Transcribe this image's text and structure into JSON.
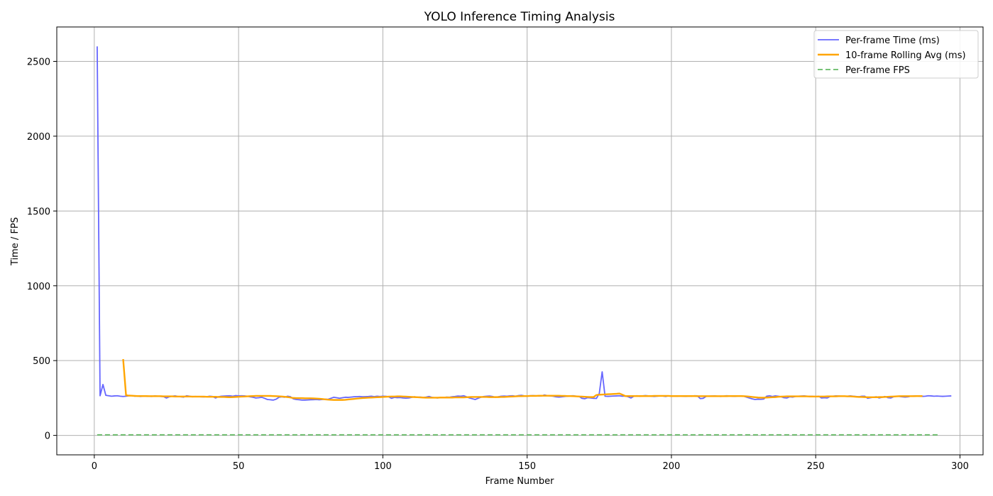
{
  "chart_data": {
    "type": "line",
    "title": "YOLO Inference Timing Analysis",
    "xlabel": "Frame Number",
    "ylabel": "Time / FPS",
    "xlim": [
      -13,
      308
    ],
    "ylim": [
      -130,
      2730
    ],
    "xticks": [
      0,
      50,
      100,
      150,
      200,
      250,
      300
    ],
    "yticks": [
      0,
      500,
      1000,
      1500,
      2000,
      2500
    ],
    "grid": true,
    "legend_position": "top-right",
    "series": [
      {
        "name": "Per-frame Time (ms)",
        "color": "#6666ff",
        "style": "solid",
        "x_start": 1,
        "values": [
          2600,
          265,
          340,
          268,
          265,
          262,
          264,
          265,
          262,
          260,
          262,
          265,
          266,
          262,
          264,
          260,
          263,
          262,
          261,
          260,
          264,
          262,
          260,
          259,
          250,
          258,
          262,
          264,
          260,
          258,
          256,
          265,
          262,
          258,
          260,
          259,
          258,
          257,
          259,
          262,
          260,
          250,
          258,
          262,
          263,
          264,
          265,
          262,
          266,
          264,
          265,
          264,
          262,
          258,
          255,
          250,
          252,
          255,
          248,
          240,
          238,
          236,
          242,
          255,
          258,
          255,
          262,
          258,
          244,
          240,
          238,
          236,
          236,
          237,
          238,
          239,
          240,
          238,
          240,
          242,
          241,
          248,
          255,
          252,
          248,
          252,
          255,
          254,
          256,
          258,
          259,
          260,
          258,
          259,
          260,
          262,
          259,
          262,
          260,
          262,
          261,
          258,
          248,
          254,
          252,
          253,
          250,
          249,
          250,
          254,
          258,
          255,
          256,
          254,
          256,
          260,
          254,
          252,
          250,
          254,
          252,
          256,
          255,
          258,
          260,
          263,
          262,
          265,
          258,
          250,
          245,
          240,
          248,
          255,
          260,
          262,
          263,
          260,
          255,
          258,
          262,
          263,
          262,
          264,
          265,
          262,
          266,
          268,
          264,
          262,
          265,
          266,
          265,
          263,
          264,
          270,
          266,
          264,
          262,
          258,
          256,
          258,
          260,
          262,
          264,
          265,
          262,
          260,
          248,
          245,
          252,
          250,
          248,
          247,
          280,
          425,
          262,
          261,
          262,
          263,
          264,
          265,
          262,
          263,
          258,
          250,
          262,
          265,
          262,
          264,
          266,
          264,
          262,
          260,
          262,
          264,
          263,
          260,
          264,
          262,
          263,
          262,
          264,
          262,
          261,
          263,
          262,
          265,
          264,
          246,
          248,
          260,
          262,
          263,
          264,
          262,
          260,
          262,
          265,
          264,
          262,
          261,
          263,
          264,
          262,
          256,
          250,
          244,
          240,
          242,
          241,
          243,
          262,
          265,
          260,
          264,
          262,
          258,
          252,
          250,
          258,
          256,
          260,
          262,
          263,
          264,
          262,
          262,
          261,
          258,
          262,
          250,
          252,
          250,
          260,
          262,
          264,
          263,
          262,
          261,
          262,
          264,
          262,
          260,
          258,
          262,
          262,
          248,
          252,
          255,
          258,
          250,
          255,
          260,
          252,
          250,
          258,
          262,
          260,
          258,
          256,
          258,
          262,
          263,
          264,
          262,
          261,
          262,
          265,
          264,
          262,
          263,
          262,
          261,
          262,
          263,
          264
        ]
      },
      {
        "name": "10-frame Rolling Avg (ms)",
        "color": "#ffa500",
        "style": "solid",
        "x_start": 10,
        "values": [
          510,
          268,
          266,
          265,
          264,
          263,
          263,
          263,
          263,
          262,
          262,
          262,
          262,
          262,
          261,
          261,
          261,
          261,
          260,
          260,
          260,
          260,
          260,
          260,
          259,
          259,
          259,
          259,
          259,
          258,
          258,
          258,
          258,
          257,
          257,
          257,
          256,
          255,
          256,
          257,
          258,
          259,
          260,
          261,
          262,
          263,
          264,
          264,
          264,
          264,
          264,
          264,
          263,
          262,
          261,
          260,
          258,
          256,
          253,
          250,
          249,
          249,
          249,
          248,
          248,
          248,
          247,
          246,
          245,
          243,
          241,
          239,
          238,
          237,
          237,
          237,
          237,
          238,
          240,
          242,
          244,
          246,
          248,
          250,
          251,
          252,
          253,
          254,
          255,
          256,
          257,
          258,
          259,
          260,
          260,
          261,
          261,
          260,
          259,
          258,
          257,
          256,
          255,
          254,
          253,
          252,
          252,
          252,
          252,
          252,
          253,
          253,
          253,
          253,
          253,
          254,
          254,
          254,
          254,
          255,
          256,
          257,
          257,
          257,
          257,
          257,
          257,
          256,
          256,
          256,
          256,
          257,
          257,
          258,
          259,
          260,
          261,
          262,
          262,
          263,
          263,
          264,
          264,
          264,
          265,
          265,
          265,
          265,
          265,
          265,
          265,
          265,
          264,
          264,
          263,
          263,
          262,
          261,
          260,
          259,
          258,
          257,
          256,
          256,
          270,
          272,
          273,
          274,
          275,
          276,
          277,
          278,
          280,
          272,
          263,
          263,
          263,
          263,
          263,
          263,
          263,
          263,
          263,
          263,
          264,
          264,
          264,
          264,
          264,
          264,
          263,
          263,
          263,
          263,
          263,
          263,
          263,
          263,
          263,
          262,
          262,
          262,
          262,
          262,
          262,
          262,
          262,
          262,
          262,
          262,
          263,
          263,
          263,
          263,
          263,
          262,
          261,
          259,
          257,
          255,
          253,
          252,
          252,
          253,
          254,
          255,
          256,
          258,
          259,
          260,
          261,
          261,
          261,
          261,
          261,
          261,
          261,
          261,
          260,
          260,
          260,
          260,
          260,
          260,
          261,
          261,
          261,
          261,
          262,
          262,
          262,
          261,
          261,
          260,
          258,
          257,
          257,
          256,
          255,
          255,
          255,
          255,
          256,
          256,
          257,
          258,
          259,
          260,
          261,
          262,
          262,
          262,
          262,
          262,
          262,
          263,
          263,
          263
        ]
      },
      {
        "name": "Per-frame FPS",
        "color": "#66bb66",
        "style": "dashed",
        "x_start": 1,
        "x_end": 293,
        "constant_value": 3.8
      }
    ]
  }
}
